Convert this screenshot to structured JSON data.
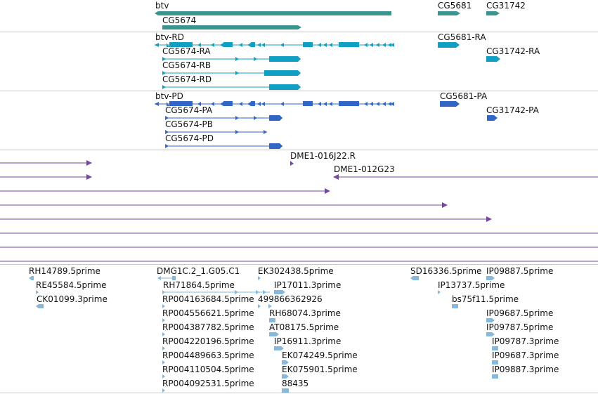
{
  "colors": {
    "gene": "#3a9490",
    "transcript": "#11a0c4",
    "protein": "#3266c6",
    "clone": "#7446a6",
    "est": "#86b8dc",
    "divider": "#c6c6c6"
  },
  "genes": [
    {
      "label": "btv",
      "type": "gene"
    },
    {
      "label": "CG5674",
      "type": "gene"
    },
    {
      "label": "CG5681",
      "type": "gene"
    },
    {
      "label": "CG31742",
      "type": "gene"
    }
  ],
  "transcripts": [
    {
      "label": "btv-RD"
    },
    {
      "label": "CG5674-RA"
    },
    {
      "label": "CG5674-RB"
    },
    {
      "label": "CG5674-RD"
    },
    {
      "label": "CG5681-RA"
    },
    {
      "label": "CG31742-RA"
    }
  ],
  "proteins": [
    {
      "label": "btv-PD"
    },
    {
      "label": "CG5674-PA"
    },
    {
      "label": "CG5674-PB"
    },
    {
      "label": "CG5674-PD"
    },
    {
      "label": "CG5681-PA"
    },
    {
      "label": "CG31742-PA"
    }
  ],
  "clones": [
    {
      "label": "DME1-016J22.R"
    },
    {
      "label": "DME1-012G23"
    }
  ],
  "ests": [
    {
      "label": "RH14789.5prime"
    },
    {
      "label": "RE45584.5prime"
    },
    {
      "label": "CK01099.3prime"
    },
    {
      "label": "DMG1C.2_1.G05.C1"
    },
    {
      "label": "RH71864.5prime"
    },
    {
      "label": "RP004163684.5prime"
    },
    {
      "label": "RP004556621.5prime"
    },
    {
      "label": "RP004387782.5prime"
    },
    {
      "label": "RP004220196.5prime"
    },
    {
      "label": "RP004489663.5prime"
    },
    {
      "label": "RP004110504.5prime"
    },
    {
      "label": "RP004092531.5prime"
    },
    {
      "label": "EK302438.5prime"
    },
    {
      "label": "IP17011.3prime"
    },
    {
      "label": "499866362926"
    },
    {
      "label": "RH68074.3prime"
    },
    {
      "label": "AT08175.5prime"
    },
    {
      "label": "IP16911.3prime"
    },
    {
      "label": "EK074249.5prime"
    },
    {
      "label": "EK075901.5prime"
    },
    {
      "label": "88435"
    },
    {
      "label": "SD16336.5prime"
    },
    {
      "label": "IP13737.5prime"
    },
    {
      "label": "bs75f11.5prime"
    },
    {
      "label": "IP09887.5prime"
    },
    {
      "label": "IP09687.5prime"
    },
    {
      "label": "IP09787.5prime"
    },
    {
      "label": "IP09787.3prime"
    },
    {
      "label": "IP09687.3prime"
    },
    {
      "label": "IP09887.3prime"
    }
  ]
}
